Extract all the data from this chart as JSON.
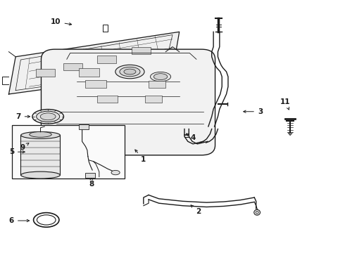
{
  "bg_color": "#ffffff",
  "line_color": "#1a1a1a",
  "fig_width": 4.9,
  "fig_height": 3.6,
  "dpi": 100,
  "label_positions": {
    "1": [
      0.415,
      0.365,
      0.375,
      0.415
    ],
    "2": [
      0.575,
      0.155,
      0.555,
      0.185
    ],
    "3": [
      0.755,
      0.555,
      0.715,
      0.555
    ],
    "4": [
      0.565,
      0.455,
      0.545,
      0.48
    ],
    "5": [
      0.055,
      0.4,
      0.11,
      0.4
    ],
    "6": [
      0.055,
      0.12,
      0.098,
      0.12
    ],
    "7": [
      0.068,
      0.535,
      0.115,
      0.535
    ],
    "8": [
      0.295,
      0.268,
      0.295,
      0.298
    ],
    "9": [
      0.078,
      0.415,
      0.095,
      0.44
    ],
    "10": [
      0.175,
      0.92,
      0.225,
      0.905
    ],
    "11": [
      0.845,
      0.595,
      0.845,
      0.56
    ]
  }
}
